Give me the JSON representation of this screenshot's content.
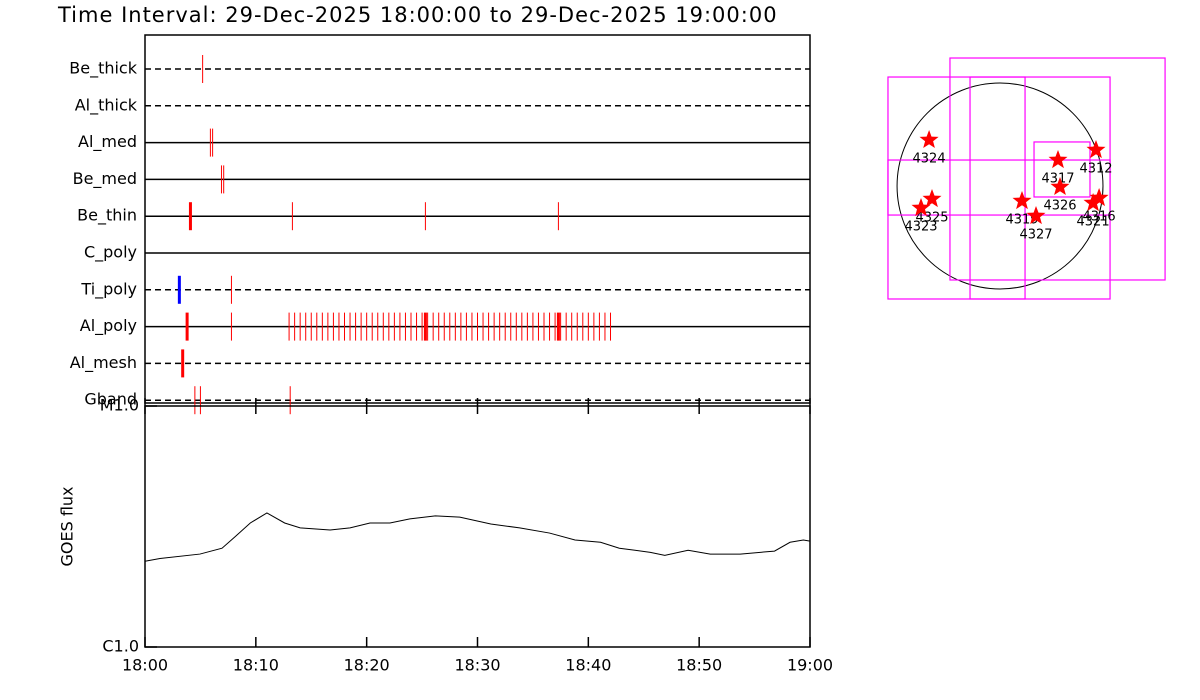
{
  "title": "Time Interval: 29-Dec-2025 18:00:00 to 29-Dec-2025 19:00:00",
  "chart_data": [
    {
      "type": "timeline",
      "xlim": [
        0,
        60
      ],
      "color": "#ff0000",
      "rows": [
        {
          "label": "Be_thick",
          "style": "dashed",
          "x": [
            5.2
          ]
        },
        {
          "label": "Al_thick",
          "style": "dashed",
          "x": []
        },
        {
          "label": "Al_med",
          "style": "solid",
          "x": [
            5.9,
            6.1
          ]
        },
        {
          "label": "Be_med",
          "style": "solid",
          "x": [
            6.9,
            7.1
          ]
        },
        {
          "label": "Be_thin",
          "style": "solid",
          "x": [
            13.3,
            25.3,
            37.3
          ],
          "bold": [
            {
              "x": 4.1,
              "color": "#ff0000"
            }
          ]
        },
        {
          "label": "C_poly",
          "style": "solid",
          "x": []
        },
        {
          "label": "Ti_poly",
          "style": "dashed",
          "x": [
            7.8
          ],
          "bold": [
            {
              "x": 3.1,
              "color": "#0000ff"
            }
          ]
        },
        {
          "label": "Al_poly",
          "style": "solid",
          "x": [
            7.8,
            13.0,
            13.5,
            14.0,
            14.5,
            15.0,
            15.5,
            16.0,
            16.5,
            17.0,
            17.5,
            18.0,
            18.5,
            19.0,
            19.5,
            20.0,
            20.5,
            21.0,
            21.5,
            22.0,
            22.5,
            23.0,
            23.5,
            24.0,
            24.5,
            25.0,
            25.5,
            26.0,
            26.5,
            27.0,
            27.5,
            28.0,
            28.5,
            29.0,
            29.5,
            30.0,
            30.5,
            31.0,
            31.5,
            32.0,
            32.5,
            33.0,
            33.5,
            34.0,
            34.5,
            35.0,
            35.5,
            36.0,
            36.5,
            37.0,
            37.5,
            38.0,
            38.5,
            39.0,
            39.5,
            40.0,
            40.5,
            41.0,
            41.5,
            42.0
          ],
          "bold": [
            {
              "x": 3.8,
              "color": "#ff0000"
            },
            {
              "x": 25.3,
              "color": "#ff0000"
            },
            {
              "x": 37.3,
              "color": "#ff0000"
            }
          ]
        },
        {
          "label": "Al_mesh",
          "style": "dashed",
          "x": [],
          "bold": [
            {
              "x": 3.4,
              "color": "#ff0000"
            }
          ]
        },
        {
          "label": "Gband",
          "style": "dashed",
          "x": [
            4.5,
            5.0,
            13.1
          ]
        }
      ]
    },
    {
      "type": "line",
      "ylabel": "GOES flux",
      "log_scale": true,
      "color": "#000000",
      "xlim": [
        0,
        60
      ],
      "xticks": [
        {
          "value": 0,
          "label": "18:00"
        },
        {
          "value": 10,
          "label": "18:10"
        },
        {
          "value": 20,
          "label": "18:20"
        },
        {
          "value": 30,
          "label": "18:30"
        },
        {
          "value": 40,
          "label": "18:40"
        },
        {
          "value": 50,
          "label": "18:50"
        },
        {
          "value": 60,
          "label": "19:00"
        }
      ],
      "ylim": [
        1e-06,
        1e-05
      ],
      "yticks": [
        {
          "value": 1e-06,
          "label": "C1.0"
        },
        {
          "value": 1e-05,
          "label": "M1.0"
        }
      ],
      "x": [
        0,
        1.35,
        4.96,
        6.95,
        8.1,
        9.5,
        11.0,
        12.6,
        14.0,
        16.7,
        18.5,
        20.3,
        22.1,
        23.9,
        26.2,
        28.4,
        31.2,
        33.8,
        36.5,
        38.8,
        41.1,
        42.8,
        45.6,
        46.9,
        49.0,
        51.0,
        53.7,
        56.8,
        58.2,
        59.4,
        60.0
      ],
      "values": [
        2.27e-06,
        2.33e-06,
        2.43e-06,
        2.57e-06,
        2.86e-06,
        3.27e-06,
        3.6e-06,
        3.27e-06,
        3.12e-06,
        3.06e-06,
        3.12e-06,
        3.27e-06,
        3.27e-06,
        3.4e-06,
        3.5e-06,
        3.46e-06,
        3.24e-06,
        3.12e-06,
        2.97e-06,
        2.78e-06,
        2.72e-06,
        2.57e-06,
        2.47e-06,
        2.4e-06,
        2.52e-06,
        2.43e-06,
        2.43e-06,
        2.5e-06,
        2.72e-06,
        2.78e-06,
        2.75e-06
      ]
    },
    {
      "type": "map",
      "xlim": [
        -1200,
        1800
      ],
      "ylim": [
        -1500,
        1500
      ],
      "disk_radius": 975,
      "fov_color": "#ff00ff",
      "star_color": "#ff0000",
      "fovs": [
        {
          "x": [
            -1061,
            1042
          ],
          "y": [
            -1070,
            1032
          ]
        },
        {
          "x": [
            -474,
            1563
          ],
          "y": [
            -890,
            1212
          ]
        },
        {
          "x": [
            322,
            852
          ],
          "y": [
            -104,
            417
          ]
        },
        {
          "x": [
            -1061,
            1042
          ],
          "y": [
            -275,
            246
          ]
        },
        {
          "x": [
            -284,
            237
          ],
          "y": [
            -1070,
            1032
          ]
        }
      ],
      "points": [
        {
          "label": "4324",
          "x": -672,
          "y": 436
        },
        {
          "label": "4325",
          "x": -644,
          "y": -123
        },
        {
          "label": "4323",
          "x": -748,
          "y": -208
        },
        {
          "label": "4317",
          "x": 549,
          "y": 246
        },
        {
          "label": "4312",
          "x": 909,
          "y": 341
        },
        {
          "label": "4326",
          "x": 568,
          "y": -9
        },
        {
          "label": "4319",
          "x": 208,
          "y": -142
        },
        {
          "label": "4327",
          "x": 341,
          "y": -284
        },
        {
          "label": "4321",
          "x": 881,
          "y": -161
        },
        {
          "label": "4316",
          "x": 938,
          "y": -114
        }
      ]
    }
  ]
}
